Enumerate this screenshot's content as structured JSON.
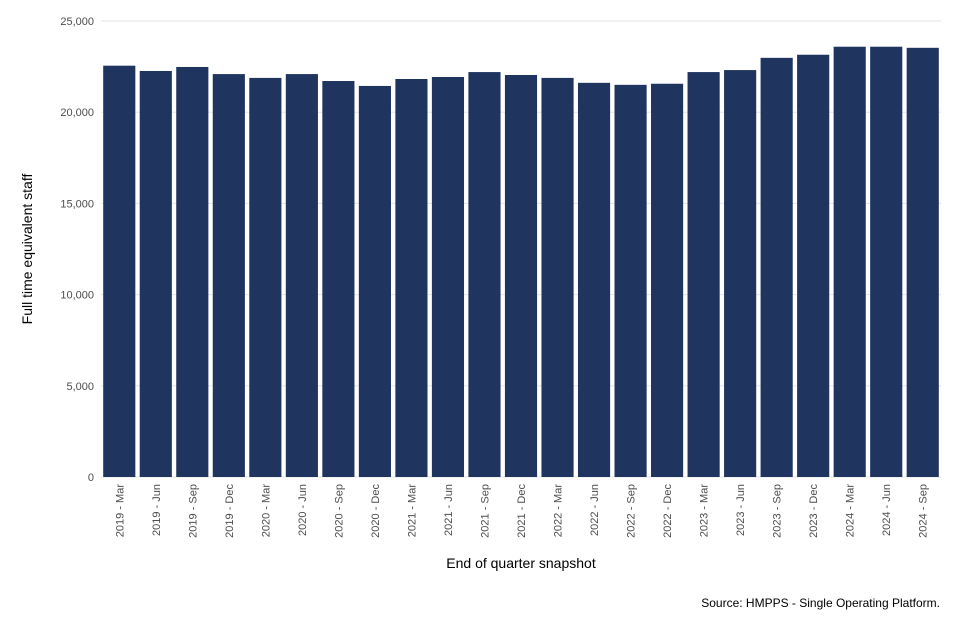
{
  "chart_data": {
    "type": "bar",
    "xlabel": "End of quarter snapshot",
    "ylabel": "Full time equivalent staff",
    "ylim": [
      0,
      25000
    ],
    "yticks": [
      0,
      5000,
      10000,
      15000,
      20000,
      25000
    ],
    "ytick_labels": [
      "0",
      "5,000",
      "10,000",
      "15,000",
      "20,000",
      "25,000"
    ],
    "grid": true,
    "bar_color": "#1f3560",
    "categories": [
      "2019 - Mar",
      "2019 - Jun",
      "2019 - Sep",
      "2019 - Dec",
      "2020 - Mar",
      "2020 - Jun",
      "2020 - Sep",
      "2020 - Dec",
      "2021 - Mar",
      "2021 - Jun",
      "2021 - Sep",
      "2021 - Dec",
      "2022 - Mar",
      "2022 - Jun",
      "2022 - Sep",
      "2022 - Dec",
      "2023 - Mar",
      "2023 - Jun",
      "2023 - Sep",
      "2023 - Dec",
      "2024 - Mar",
      "2024 - Jun",
      "2024 - Sep"
    ],
    "values": [
      22550,
      22260,
      22480,
      22090,
      21880,
      22090,
      21710,
      21440,
      21820,
      21930,
      22200,
      22040,
      21880,
      21610,
      21500,
      21560,
      22200,
      22310,
      22980,
      23150,
      23590,
      23590,
      23530
    ],
    "source": "Source: HMPPS - Single Operating Platform."
  }
}
